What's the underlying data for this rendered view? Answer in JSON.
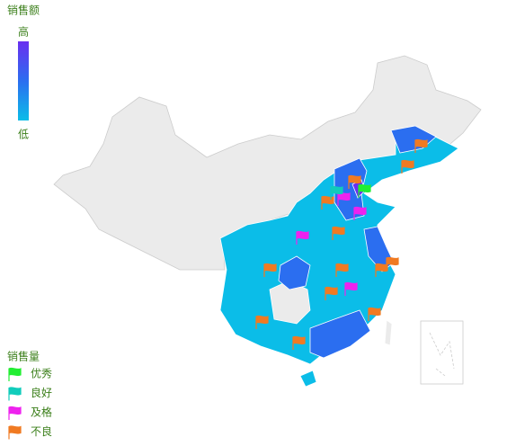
{
  "visual_map": {
    "title": "销售额",
    "high": "高",
    "low": "低",
    "colors": [
      "#6a2ff0",
      "#2b6ef0",
      "#0bbde8"
    ]
  },
  "legend": {
    "title": "销售量",
    "items": [
      {
        "name": "优秀",
        "color": "#22ee33"
      },
      {
        "name": "良好",
        "color": "#11ccbb"
      },
      {
        "name": "及格",
        "color": "#ee22ee"
      },
      {
        "name": "不良",
        "color": "#f07a22"
      }
    ]
  }
}
